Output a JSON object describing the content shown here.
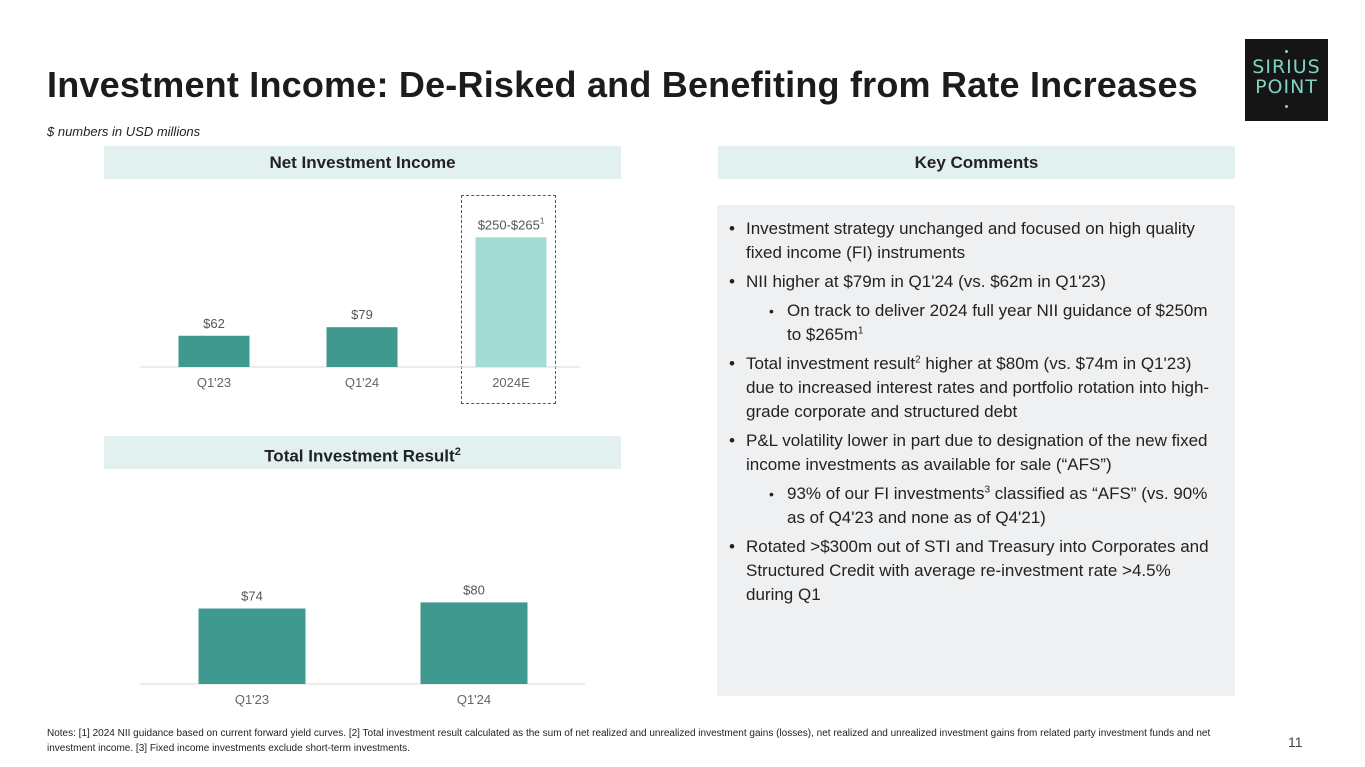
{
  "title": "Investment Income: De-Risked and Benefiting from Rate Increases",
  "subtitle": "$ numbers in USD millions",
  "logo": {
    "line1": "SIRIUS",
    "line2": "POINT"
  },
  "nii_header": "Net Investment Income",
  "tir_header": {
    "text": "Total Investment Result",
    "footnote": "2"
  },
  "comments_header": "Key Comments",
  "chart_data": [
    {
      "type": "bar",
      "title": "Net Investment Income",
      "categories": [
        "Q1'23",
        "Q1'24",
        "2024E"
      ],
      "values": [
        62,
        79,
        257.5
      ],
      "value_labels": [
        "$62",
        "$79",
        "$250-$265"
      ],
      "label_footnotes": [
        "",
        "",
        "1"
      ],
      "colors": [
        "#40998e",
        "#40998e",
        "#a4dcd4"
      ],
      "highlighted_category": "2024E",
      "ylim": [
        0,
        260
      ]
    },
    {
      "type": "bar",
      "title": "Total Investment Result",
      "categories": [
        "Q1'23",
        "Q1'24"
      ],
      "values": [
        74,
        80
      ],
      "value_labels": [
        "$74",
        "$80"
      ],
      "colors": [
        "#40998e",
        "#40998e"
      ],
      "ylim": [
        0,
        100
      ]
    }
  ],
  "comments": [
    {
      "level": 1,
      "parts": [
        {
          "t": "Investment strategy unchanged and focused on high quality fixed income (FI) instruments"
        }
      ]
    },
    {
      "level": 1,
      "parts": [
        {
          "t": "NII higher at $79m in Q1'24 (vs. $62m in Q1'23)"
        }
      ]
    },
    {
      "level": 2,
      "parts": [
        {
          "t": "On track to deliver 2024 full year NII guidance of $250m to $265m"
        },
        {
          "sup": "1"
        }
      ]
    },
    {
      "level": 1,
      "parts": [
        {
          "t": "Total investment result"
        },
        {
          "sup": "2"
        },
        {
          "t": " higher at $80m (vs. $74m in Q1'23) due to increased interest rates and portfolio rotation into high-grade corporate and structured debt"
        }
      ]
    },
    {
      "level": 1,
      "parts": [
        {
          "t": "P&L volatility lower in part due to designation of the new fixed income investments as available for sale (“AFS”)"
        }
      ]
    },
    {
      "level": 2,
      "parts": [
        {
          "t": "93% of our FI investments"
        },
        {
          "sup": "3"
        },
        {
          "t": " classified as “AFS” (vs. 90% as of Q4'23 and none as of Q4'21)"
        }
      ]
    },
    {
      "level": 1,
      "parts": [
        {
          "t": "Rotated >$300m out of STI and Treasury into Corporates and Structured Credit with average re-investment rate >4.5% during Q1"
        }
      ]
    }
  ],
  "notes": "Notes: [1] 2024 NII guidance based on current forward yield curves. [2] Total investment result calculated as the sum of net realized and unrealized investment gains (losses), net realized and unrealized investment gains from related party investment funds and net investment income. [3] Fixed income investments exclude short-term investments.",
  "page_number": "11"
}
